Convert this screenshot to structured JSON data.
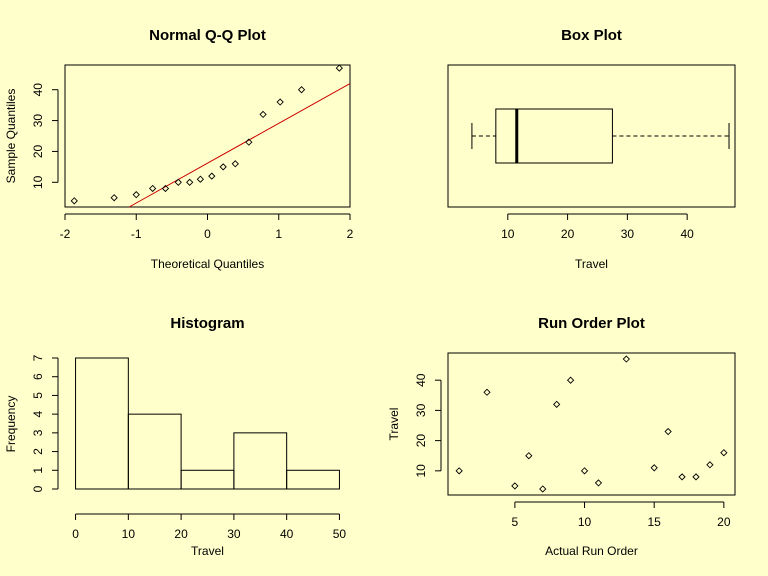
{
  "chart_data": [
    {
      "type": "scatter",
      "id": "qq",
      "title": "Normal Q-Q Plot",
      "xlabel": "Theoretical Quantiles",
      "ylabel": "Sample Quantiles",
      "xlim": [
        -2.0,
        2.0
      ],
      "ylim": [
        2,
        48
      ],
      "xticks": [
        -2,
        -1,
        0,
        1,
        2
      ],
      "yticks": [
        10,
        20,
        30,
        40
      ],
      "x": [
        -1.87,
        -1.31,
        -1.0,
        -0.77,
        -0.59,
        -0.41,
        -0.25,
        -0.1,
        0.06,
        0.22,
        0.39,
        0.58,
        0.78,
        1.02,
        1.32,
        1.85
      ],
      "y": [
        4,
        5,
        6,
        8,
        8,
        10,
        10,
        11,
        12,
        15,
        16,
        23,
        32,
        36,
        40,
        47
      ],
      "reference_line": {
        "x": [
          -1.1,
          2.0
        ],
        "y": [
          2,
          42
        ],
        "color": "#cc0000"
      }
    },
    {
      "type": "box",
      "id": "box",
      "title": "Box Plot",
      "xlabel": "Travel",
      "xlim": [
        0,
        48
      ],
      "xticks": [
        10,
        20,
        30,
        40
      ],
      "whisker_low": 4,
      "q1": 8,
      "median": 11.5,
      "q3": 27.5,
      "whisker_high": 47
    },
    {
      "type": "bar",
      "id": "hist",
      "title": "Histogram",
      "xlabel": "Travel",
      "ylabel": "Frequency",
      "bins": [
        [
          0,
          10
        ],
        [
          10,
          20
        ],
        [
          20,
          30
        ],
        [
          30,
          40
        ],
        [
          40,
          50
        ]
      ],
      "values": [
        7,
        4,
        1,
        3,
        1
      ],
      "xlim": [
        -2,
        52
      ],
      "ylim": [
        0,
        7
      ],
      "xticks": [
        0,
        10,
        20,
        30,
        40,
        50
      ],
      "yticks": [
        0,
        1,
        2,
        3,
        4,
        5,
        6,
        7
      ]
    },
    {
      "type": "scatter",
      "id": "runorder",
      "title": "Run Order Plot",
      "xlabel": "Actual Run Order",
      "ylabel": "Travel",
      "xlim": [
        0.2,
        20.8
      ],
      "ylim": [
        2,
        49
      ],
      "xticks": [
        5,
        10,
        15,
        20
      ],
      "yticks": [
        10,
        20,
        30,
        40
      ],
      "x": [
        1,
        3,
        5,
        6,
        7,
        8,
        9,
        10,
        11,
        13,
        15,
        16,
        17,
        18,
        19,
        20
      ],
      "y": [
        10,
        36,
        5,
        15,
        4,
        32,
        40,
        10,
        6,
        47,
        11,
        23,
        8,
        8,
        12,
        16
      ]
    }
  ]
}
